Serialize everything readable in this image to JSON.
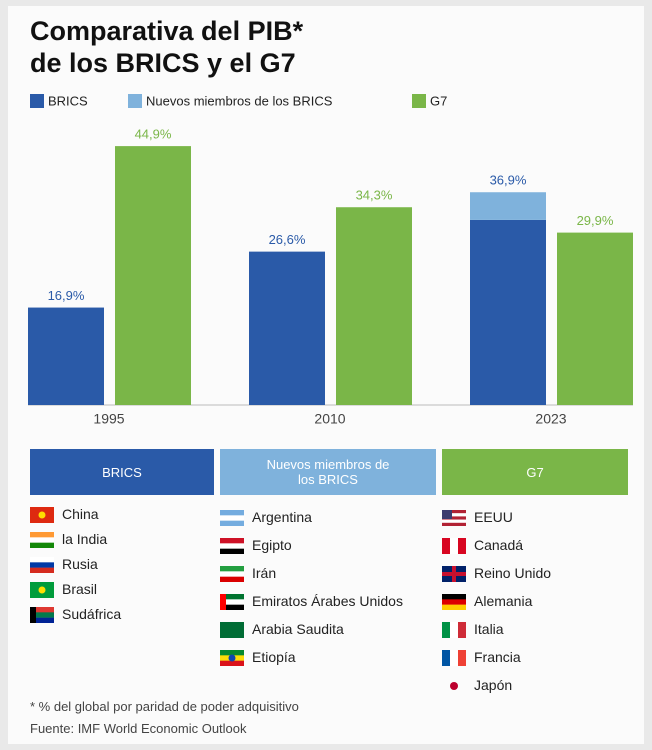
{
  "chart_data": {
    "type": "bar",
    "title": [
      "Comparativa del PIB*",
      "de los BRICS y el G7"
    ],
    "categories": [
      "1995",
      "2010",
      "2023"
    ],
    "series": [
      {
        "name": "BRICS",
        "color": "#2a5aa8",
        "values": [
          16.9,
          26.6,
          32.1
        ],
        "value_labels": [
          "16,9%",
          "26,6%",
          null
        ]
      },
      {
        "name": "Nuevos miembros de los BRICS",
        "color": "#7fb2dc",
        "values": [
          null,
          null,
          4.8
        ],
        "value_labels": [
          null,
          null,
          null
        ]
      },
      {
        "name": "G7",
        "color": "#7ab648",
        "values": [
          44.9,
          34.3,
          29.9
        ],
        "value_labels": [
          "44,9%",
          "34,3%",
          "29,9%"
        ]
      }
    ],
    "annotations": [
      {
        "text": "36,9%",
        "category": "2023",
        "value": 36.9
      }
    ],
    "ylim": [
      0,
      47
    ]
  },
  "groups": [
    {
      "title": "BRICS",
      "members": [
        "China",
        "la India",
        "Rusia",
        "Brasil",
        "Sudáfrica"
      ]
    },
    {
      "title": "Nuevos miembros de los BRICS",
      "members": [
        "Argentina",
        "Egipto",
        "Irán",
        "Emiratos Árabes Unidos",
        "Arabia Saudita",
        "Etiopía"
      ]
    },
    {
      "title": "G7",
      "members": [
        "EEUU",
        "Canadá",
        "Reino Unido",
        "Alemania",
        "Italia",
        "Francia",
        "Japón"
      ]
    }
  ],
  "footnote": "* % del global por paridad de poder adquisitivo",
  "source": "Fuente: IMF World Economic Outlook"
}
